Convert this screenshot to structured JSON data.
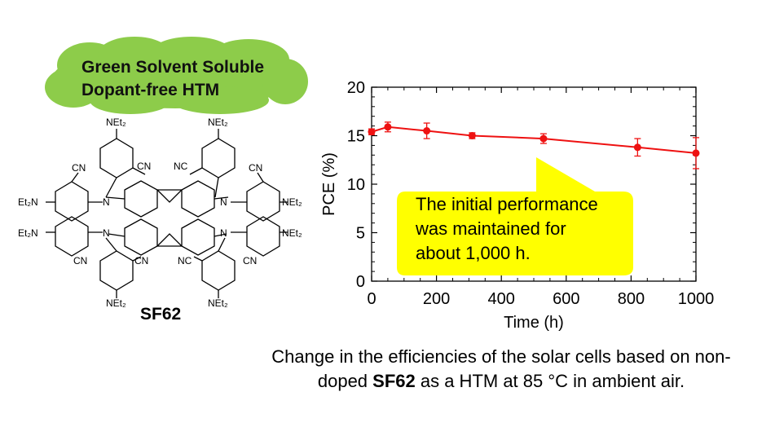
{
  "cloud": {
    "line1": "Green Solvent Soluble",
    "line2": "Dopant-free HTM",
    "color": "#8dcc4a"
  },
  "molecule": {
    "name": "SF62",
    "labels": {
      "net2": "NEt₂",
      "et2n": "Et₂N",
      "cn": "CN",
      "nc": "NC",
      "n": "N"
    }
  },
  "chart_data": {
    "type": "line",
    "x": [
      0,
      50,
      170,
      310,
      530,
      820,
      1000
    ],
    "series": [
      {
        "y": [
          15.4,
          15.9,
          15.5,
          15.0,
          14.7,
          13.8,
          13.2
        ],
        "err": [
          0.3,
          0.5,
          0.8,
          0.3,
          0.5,
          0.9,
          1.6
        ],
        "color": "#ee1111"
      }
    ],
    "xlabel": "Time (h)",
    "ylabel": "PCE (%)",
    "xlim": [
      0,
      1000
    ],
    "ylim": [
      0,
      20
    ],
    "xticks": [
      0,
      200,
      400,
      600,
      800,
      1000
    ],
    "yticks": [
      0,
      5,
      10,
      15,
      20
    ],
    "grid": false
  },
  "callout": {
    "lines": [
      "The initial performance",
      "was maintained for",
      "about 1,000 h."
    ],
    "color": "#ffff00"
  },
  "caption": {
    "part1": "Change in the efficiencies of the solar cells based on non-",
    "part2": "doped ",
    "bold": "SF62",
    "part3": " as a HTM at 85 °C in ambient air."
  }
}
